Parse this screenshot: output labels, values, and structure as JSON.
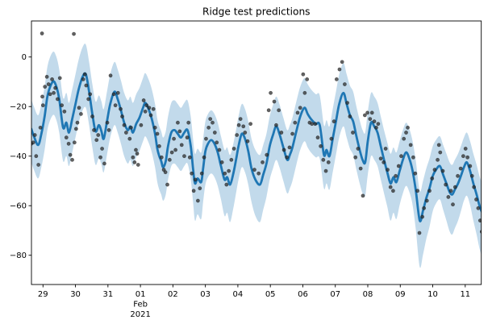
{
  "figure": {
    "title": "Ridge test predictions"
  },
  "chart_data": {
    "type": "line",
    "title": "Ridge test predictions",
    "legend": "none",
    "grid": false,
    "xlim": [
      -0.355,
      13.494
    ],
    "ylim": [
      -91.8,
      14.54
    ],
    "x_axis": {
      "unit": "date",
      "tick_days": [
        0,
        1,
        2,
        3,
        4,
        5,
        6,
        7,
        8,
        9,
        10,
        11,
        12,
        13
      ],
      "tick_labels": [
        "29",
        "30",
        "31",
        "01",
        "02",
        "03",
        "04",
        "05",
        "06",
        "07",
        "08",
        "09",
        "10",
        "11"
      ],
      "month_label": "Feb",
      "year_label": "2021",
      "month_label_day": 3
    },
    "y_axis": {
      "tick_values": [
        0,
        -20,
        -40,
        -60,
        -80
      ],
      "tick_labels": [
        "0",
        "−20",
        "−40",
        "−60",
        "−80"
      ]
    },
    "colors": {
      "line": "#1f77b4",
      "band": "#1f77b4",
      "scatter": "#2e2e2e",
      "frame": "#000000",
      "text": "#000000",
      "background": "#ffffff"
    },
    "band": {
      "upper_offset": 12,
      "lower_offset": 13.5,
      "lower_extra_threshold": -45,
      "lower_extra_factor": 0.25,
      "opacity": 0.27
    },
    "line_width": 2.8,
    "scatter_radius": 2.1,
    "scatter_opacity": 0.75,
    "prediction_line": [
      [
        -0.36,
        -29
      ],
      [
        -0.28,
        -32
      ],
      [
        -0.15,
        -35.5
      ],
      [
        -0.05,
        -31
      ],
      [
        0.05,
        -24
      ],
      [
        0.15,
        -15
      ],
      [
        0.3,
        -10
      ],
      [
        0.4,
        -11.5
      ],
      [
        0.5,
        -17
      ],
      [
        0.62,
        -28.5
      ],
      [
        0.72,
        -26.5
      ],
      [
        0.8,
        -30.5
      ],
      [
        0.9,
        -25
      ],
      [
        1.0,
        -19
      ],
      [
        1.1,
        -13
      ],
      [
        1.22,
        -8
      ],
      [
        1.32,
        -7
      ],
      [
        1.42,
        -14
      ],
      [
        1.52,
        -23
      ],
      [
        1.62,
        -30
      ],
      [
        1.72,
        -27.5
      ],
      [
        1.8,
        -30
      ],
      [
        1.87,
        -33
      ],
      [
        1.97,
        -26
      ],
      [
        2.07,
        -19
      ],
      [
        2.2,
        -14
      ],
      [
        2.3,
        -17
      ],
      [
        2.4,
        -21.5
      ],
      [
        2.5,
        -26.5
      ],
      [
        2.61,
        -29.5
      ],
      [
        2.69,
        -28
      ],
      [
        2.77,
        -30.5
      ],
      [
        2.87,
        -27
      ],
      [
        2.97,
        -24.5
      ],
      [
        3.08,
        -20.5
      ],
      [
        3.15,
        -18.5
      ],
      [
        3.25,
        -21
      ],
      [
        3.35,
        -25
      ],
      [
        3.45,
        -31
      ],
      [
        3.52,
        -37
      ],
      [
        3.58,
        -40
      ],
      [
        3.64,
        -42
      ],
      [
        3.7,
        -44.5
      ],
      [
        3.78,
        -42
      ],
      [
        3.85,
        -36
      ],
      [
        3.95,
        -30.5
      ],
      [
        4.05,
        -29.5
      ],
      [
        4.15,
        -31
      ],
      [
        4.25,
        -32.5
      ],
      [
        4.35,
        -30.5
      ],
      [
        4.45,
        -29.5
      ],
      [
        4.55,
        -36
      ],
      [
        4.62,
        -45
      ],
      [
        4.68,
        -51
      ],
      [
        4.76,
        -49
      ],
      [
        4.87,
        -50.5
      ],
      [
        4.93,
        -45
      ],
      [
        5.0,
        -38
      ],
      [
        5.08,
        -35
      ],
      [
        5.18,
        -33.5
      ],
      [
        5.28,
        -35
      ],
      [
        5.38,
        -38.5
      ],
      [
        5.48,
        -44
      ],
      [
        5.59,
        -49.5
      ],
      [
        5.67,
        -48.5
      ],
      [
        5.76,
        -51.5
      ],
      [
        5.86,
        -47
      ],
      [
        5.95,
        -41
      ],
      [
        6.02,
        -36
      ],
      [
        6.12,
        -31
      ],
      [
        6.22,
        -33
      ],
      [
        6.32,
        -38
      ],
      [
        6.42,
        -45
      ],
      [
        6.54,
        -49.5
      ],
      [
        6.68,
        -51.5
      ],
      [
        6.78,
        -47.5
      ],
      [
        6.88,
        -43
      ],
      [
        6.98,
        -36
      ],
      [
        7.08,
        -31.5
      ],
      [
        7.18,
        -28
      ],
      [
        7.28,
        -31
      ],
      [
        7.4,
        -36.5
      ],
      [
        7.52,
        -41.5
      ],
      [
        7.6,
        -39.5
      ],
      [
        7.68,
        -36.5
      ],
      [
        7.8,
        -30
      ],
      [
        7.92,
        -24
      ],
      [
        8.05,
        -20.5
      ],
      [
        8.15,
        -23
      ],
      [
        8.25,
        -25
      ],
      [
        8.4,
        -27
      ],
      [
        8.52,
        -27.5
      ],
      [
        8.65,
        -39.5
      ],
      [
        8.73,
        -37.5
      ],
      [
        8.82,
        -40
      ],
      [
        8.92,
        -33
      ],
      [
        9.02,
        -26
      ],
      [
        9.12,
        -19
      ],
      [
        9.25,
        -14.5
      ],
      [
        9.35,
        -19
      ],
      [
        9.45,
        -23.5
      ],
      [
        9.55,
        -26
      ],
      [
        9.65,
        -32
      ],
      [
        9.76,
        -38
      ],
      [
        9.84,
        -41.5
      ],
      [
        9.92,
        -42.5
      ],
      [
        10.0,
        -34
      ],
      [
        10.1,
        -26.5
      ],
      [
        10.2,
        -28
      ],
      [
        10.3,
        -30.5
      ],
      [
        10.4,
        -36
      ],
      [
        10.5,
        -41.5
      ],
      [
        10.6,
        -46.5
      ],
      [
        10.7,
        -51
      ],
      [
        10.79,
        -48.5
      ],
      [
        10.88,
        -50.5
      ],
      [
        10.98,
        -46
      ],
      [
        11.08,
        -41.5
      ],
      [
        11.18,
        -38.5
      ],
      [
        11.28,
        -41
      ],
      [
        11.38,
        -46
      ],
      [
        11.48,
        -54
      ],
      [
        11.6,
        -66
      ],
      [
        11.7,
        -62
      ],
      [
        11.8,
        -57
      ],
      [
        11.9,
        -53
      ],
      [
        12.0,
        -48
      ],
      [
        12.1,
        -45.5
      ],
      [
        12.22,
        -44
      ],
      [
        12.32,
        -47.5
      ],
      [
        12.42,
        -51
      ],
      [
        12.52,
        -54.5
      ],
      [
        12.6,
        -55.5
      ],
      [
        12.68,
        -53.5
      ],
      [
        12.78,
        -51
      ],
      [
        12.88,
        -47.5
      ],
      [
        12.96,
        -44.5
      ],
      [
        13.05,
        -42.5
      ],
      [
        13.15,
        -46
      ],
      [
        13.25,
        -51
      ],
      [
        13.35,
        -55.5
      ],
      [
        13.45,
        -60.5
      ],
      [
        13.53,
        -63
      ]
    ],
    "observations_scatter": [
      [
        -0.36,
        -35
      ],
      [
        -0.3,
        -34.5
      ],
      [
        -0.25,
        -31.5
      ],
      [
        -0.21,
        -40
      ],
      [
        -0.14,
        -43.5
      ],
      [
        -0.08,
        -28.5
      ],
      [
        -0.03,
        9.5
      ],
      [
        -0.02,
        -16
      ],
      [
        0.0,
        -19.5
      ],
      [
        0.06,
        -12
      ],
      [
        0.12,
        -8
      ],
      [
        0.17,
        -11
      ],
      [
        0.22,
        -15
      ],
      [
        0.28,
        -9
      ],
      [
        0.33,
        -14.5
      ],
      [
        0.38,
        -12.5
      ],
      [
        0.45,
        -17
      ],
      [
        0.52,
        -8.5
      ],
      [
        0.58,
        -19.5
      ],
      [
        0.66,
        -22
      ],
      [
        0.72,
        -32.5
      ],
      [
        0.79,
        -35
      ],
      [
        0.84,
        -39.5
      ],
      [
        0.9,
        -41.5
      ],
      [
        0.95,
        9.3
      ],
      [
        0.97,
        -34.5
      ],
      [
        1.02,
        -29
      ],
      [
        1.06,
        -26.5
      ],
      [
        1.11,
        -20.5
      ],
      [
        1.17,
        -23
      ],
      [
        1.24,
        -9
      ],
      [
        1.29,
        -7
      ],
      [
        1.33,
        -11.5
      ],
      [
        1.4,
        -17
      ],
      [
        1.45,
        -15
      ],
      [
        1.52,
        -24
      ],
      [
        1.57,
        -29.5
      ],
      [
        1.65,
        -33.5
      ],
      [
        1.7,
        -31.5
      ],
      [
        1.77,
        -40.5
      ],
      [
        1.82,
        -37
      ],
      [
        1.89,
        -43
      ],
      [
        1.98,
        -26.5
      ],
      [
        2.03,
        -29.5
      ],
      [
        2.08,
        -7.5
      ],
      [
        2.18,
        -15
      ],
      [
        2.23,
        -19.5
      ],
      [
        2.31,
        -14.5
      ],
      [
        2.39,
        -21
      ],
      [
        2.44,
        -24
      ],
      [
        2.5,
        -27.5
      ],
      [
        2.56,
        -30.5
      ],
      [
        2.67,
        -33
      ],
      [
        2.71,
        -28.5
      ],
      [
        2.77,
        -40.5
      ],
      [
        2.82,
        -42.5
      ],
      [
        2.86,
        -37.5
      ],
      [
        2.9,
        -39
      ],
      [
        2.93,
        -43.5
      ],
      [
        3.02,
        -27.5
      ],
      [
        3.1,
        -17.5
      ],
      [
        3.15,
        -22
      ],
      [
        3.19,
        -19.5
      ],
      [
        3.27,
        -20.5
      ],
      [
        3.32,
        -23.5
      ],
      [
        3.4,
        -21
      ],
      [
        3.45,
        -28.5
      ],
      [
        3.52,
        -31
      ],
      [
        3.58,
        -36
      ],
      [
        3.65,
        -40.5
      ],
      [
        3.72,
        -45.5
      ],
      [
        3.77,
        -46.5
      ],
      [
        3.83,
        -51.5
      ],
      [
        3.9,
        -41.5
      ],
      [
        3.97,
        -38.5
      ],
      [
        4.03,
        -33
      ],
      [
        4.08,
        -37.5
      ],
      [
        4.15,
        -26.5
      ],
      [
        4.21,
        -30
      ],
      [
        4.27,
        -35.5
      ],
      [
        4.35,
        -40
      ],
      [
        4.44,
        -32.5
      ],
      [
        4.48,
        -26.5
      ],
      [
        4.52,
        -40.5
      ],
      [
        4.58,
        -47
      ],
      [
        4.64,
        -54
      ],
      [
        4.69,
        -49.5
      ],
      [
        4.77,
        -58
      ],
      [
        4.83,
        -53
      ],
      [
        4.89,
        -47
      ],
      [
        4.96,
        -40.5
      ],
      [
        5.02,
        -33
      ],
      [
        5.1,
        -28.5
      ],
      [
        5.15,
        -25
      ],
      [
        5.22,
        -26.5
      ],
      [
        5.29,
        -30.5
      ],
      [
        5.35,
        -34.5
      ],
      [
        5.43,
        -37.5
      ],
      [
        5.51,
        -42.5
      ],
      [
        5.6,
        -47
      ],
      [
        5.65,
        -51.5
      ],
      [
        5.72,
        -46
      ],
      [
        5.8,
        -41.5
      ],
      [
        5.88,
        -37
      ],
      [
        5.97,
        -31.5
      ],
      [
        6.03,
        -27.5
      ],
      [
        6.08,
        -25
      ],
      [
        6.17,
        -28
      ],
      [
        6.22,
        -30.5
      ],
      [
        6.3,
        -34
      ],
      [
        6.39,
        -27
      ],
      [
        6.51,
        -45.5
      ],
      [
        6.64,
        -47
      ],
      [
        6.76,
        -42.5
      ],
      [
        6.89,
        -39.5
      ],
      [
        6.95,
        -21.5
      ],
      [
        7.01,
        -14.5
      ],
      [
        7.12,
        -18
      ],
      [
        7.18,
        -27.5
      ],
      [
        7.26,
        -21.5
      ],
      [
        7.34,
        -30.5
      ],
      [
        7.42,
        -37.5
      ],
      [
        7.51,
        -40.5
      ],
      [
        7.59,
        -36.5
      ],
      [
        7.68,
        -31
      ],
      [
        7.76,
        -26.5
      ],
      [
        7.84,
        -22.5
      ],
      [
        7.92,
        -20.5
      ],
      [
        8.01,
        -7
      ],
      [
        8.06,
        -14.5
      ],
      [
        8.13,
        -9
      ],
      [
        8.21,
        -26.5
      ],
      [
        8.28,
        -27
      ],
      [
        8.38,
        -27
      ],
      [
        8.46,
        -32.5
      ],
      [
        8.55,
        -36
      ],
      [
        8.63,
        -41.5
      ],
      [
        8.71,
        -46
      ],
      [
        8.79,
        -42.5
      ],
      [
        8.88,
        -33
      ],
      [
        8.96,
        -26
      ],
      [
        9.04,
        -9
      ],
      [
        9.13,
        -5
      ],
      [
        9.21,
        -2
      ],
      [
        9.29,
        -11
      ],
      [
        9.37,
        -18.5
      ],
      [
        9.45,
        -24
      ],
      [
        9.54,
        -30.5
      ],
      [
        9.62,
        -40.5
      ],
      [
        9.7,
        -37
      ],
      [
        9.78,
        -45
      ],
      [
        9.85,
        -56
      ],
      [
        9.91,
        -23.5
      ],
      [
        9.99,
        -22.5
      ],
      [
        10.07,
        -25
      ],
      [
        10.13,
        -22.5
      ],
      [
        10.2,
        -26
      ],
      [
        10.26,
        -28.5
      ],
      [
        10.32,
        -27
      ],
      [
        10.4,
        -41
      ],
      [
        10.49,
        -42.5
      ],
      [
        10.55,
        -37
      ],
      [
        10.61,
        -45.5
      ],
      [
        10.7,
        -52.5
      ],
      [
        10.78,
        -54
      ],
      [
        10.86,
        -48
      ],
      [
        10.95,
        -44
      ],
      [
        11.03,
        -40
      ],
      [
        11.11,
        -33
      ],
      [
        11.18,
        -30.5
      ],
      [
        11.23,
        -28.5
      ],
      [
        11.32,
        -35.5
      ],
      [
        11.4,
        -40.5
      ],
      [
        11.46,
        -47
      ],
      [
        11.53,
        -54
      ],
      [
        11.59,
        -71
      ],
      [
        11.68,
        -64.5
      ],
      [
        11.73,
        -61
      ],
      [
        11.82,
        -58
      ],
      [
        11.9,
        -54
      ],
      [
        11.98,
        -49
      ],
      [
        12.06,
        -45.5
      ],
      [
        12.15,
        -41.5
      ],
      [
        12.19,
        -35.5
      ],
      [
        12.23,
        -38.5
      ],
      [
        12.31,
        -46
      ],
      [
        12.4,
        -51.5
      ],
      [
        12.48,
        -56.5
      ],
      [
        12.56,
        -54
      ],
      [
        12.62,
        -59.5
      ],
      [
        12.69,
        -52.5
      ],
      [
        12.77,
        -48
      ],
      [
        12.86,
        -45
      ],
      [
        12.94,
        -40
      ],
      [
        13.01,
        -37
      ],
      [
        13.07,
        -40.5
      ],
      [
        13.15,
        -44
      ],
      [
        13.21,
        -48
      ],
      [
        13.27,
        -52.5
      ],
      [
        13.34,
        -57.5
      ],
      [
        13.4,
        -61
      ],
      [
        13.46,
        -66
      ],
      [
        13.51,
        -70.5
      ]
    ]
  }
}
